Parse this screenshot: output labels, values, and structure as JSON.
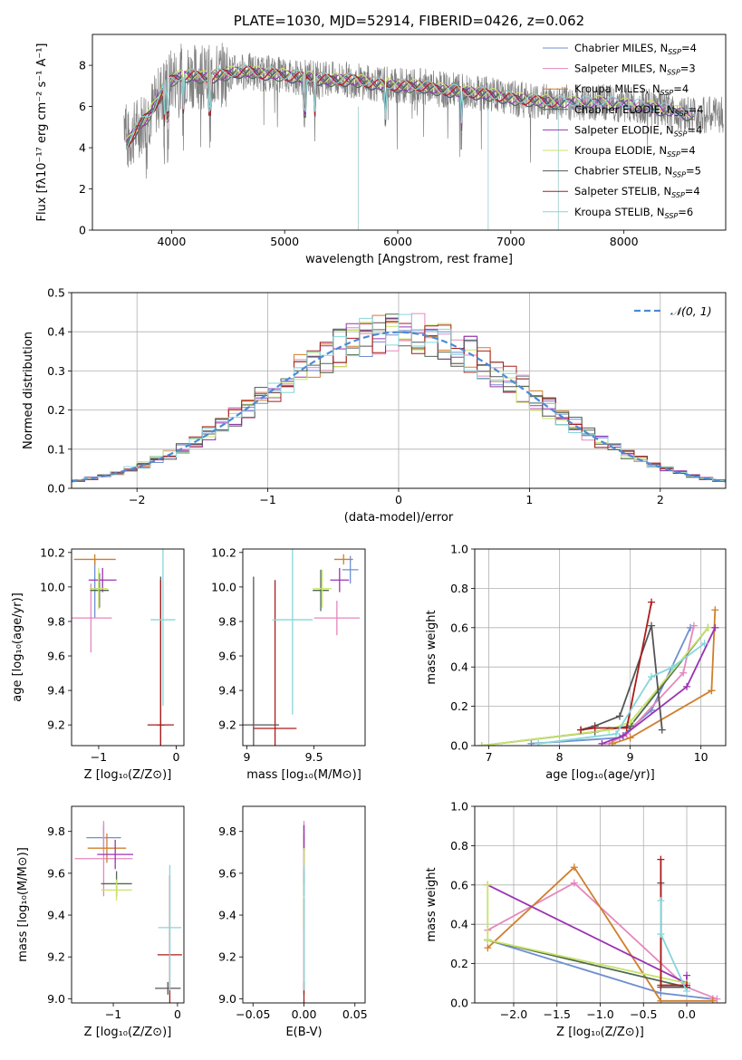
{
  "colors": {
    "Chabrier MILES": "#6f8fd0",
    "Salpeter MILES": "#e687bd",
    "Kroupa MILES": "#d07f2c",
    "Chabrier ELODIE": "#4d6a4f",
    "Salpeter ELODIE": "#9a34b3",
    "Kroupa ELODIE": "#c8e36a",
    "Chabrier STELIB": "#555555",
    "Salpeter STELIB": "#aa1c1c",
    "Kroupa STELIB": "#86d6db",
    "data": "#808080",
    "gauss": "#4c8ad6"
  },
  "chart_data": [
    {
      "id": "spectrum",
      "type": "line",
      "title": "PLATE=1030, MJD=52914, FIBERID=0426, z=0.062",
      "xlabel": "wavelength [Angstrom, rest frame]",
      "ylabel": "Flux [fλ10⁻¹⁷ erg cm⁻² s⁻¹ A⁻¹]",
      "xlim": [
        3300,
        8900
      ],
      "ylim": [
        0,
        9.5
      ],
      "xticks": [
        4000,
        5000,
        6000,
        7000,
        8000
      ],
      "yticks": [
        0,
        2,
        4,
        6,
        8
      ],
      "grid": false,
      "legend_position": "top-right",
      "legend": [
        {
          "label": "Chabrier MILES, N",
          "sub": "SSP",
          "suffix": "=4"
        },
        {
          "label": "Salpeter MILES, N",
          "sub": "SSP",
          "suffix": "=3"
        },
        {
          "label": "Kroupa MILES, N",
          "sub": "SSP",
          "suffix": "=4"
        },
        {
          "label": "Chabrier ELODIE, N",
          "sub": "SSP",
          "suffix": "=4"
        },
        {
          "label": "Salpeter ELODIE, N",
          "sub": "SSP",
          "suffix": "=4"
        },
        {
          "label": "Kroupa ELODIE, N",
          "sub": "SSP",
          "suffix": "=4"
        },
        {
          "label": "Chabrier STELIB, N",
          "sub": "SSP",
          "suffix": "=5"
        },
        {
          "label": "Salpeter STELIB, N",
          "sub": "SSP",
          "suffix": "=4"
        },
        {
          "label": "Kroupa STELIB, N",
          "sub": "SSP",
          "suffix": "=6"
        }
      ],
      "model_continuum": {
        "x": [
          3600,
          3650,
          3700,
          3750,
          3800,
          3850,
          3900,
          3950,
          4000,
          4100,
          4200,
          4300,
          4400,
          4500,
          4600,
          4700,
          4800,
          4900,
          5000,
          5200,
          5400,
          5600,
          5800,
          6000,
          6200,
          6400,
          6600,
          6800,
          7000,
          7200,
          7400,
          7600,
          7800,
          8000,
          8200,
          8400,
          8600
        ],
        "y": [
          4.1,
          4.6,
          5.0,
          5.3,
          5.6,
          6.0,
          6.6,
          7.0,
          7.3,
          7.5,
          7.5,
          7.4,
          7.5,
          7.6,
          7.7,
          7.7,
          7.6,
          7.6,
          7.5,
          7.4,
          7.3,
          7.3,
          7.1,
          7.0,
          7.0,
          6.8,
          6.7,
          6.6,
          6.4,
          6.3,
          6.2,
          6.2,
          6.2,
          6.1,
          6.0,
          5.8,
          5.6
        ]
      },
      "absorption_lines": [
        3934,
        3969,
        4102,
        4340,
        5175,
        5269,
        5890,
        6563
      ],
      "data_dropouts": [
        5650,
        6800,
        7420
      ]
    },
    {
      "id": "residuals",
      "type": "histogram",
      "xlabel": "(data-model)/error",
      "ylabel": "Normed distribution",
      "xlim": [
        -2.5,
        2.5
      ],
      "ylim": [
        0,
        0.5
      ],
      "xticks": [
        -2,
        -1,
        0,
        1,
        2
      ],
      "yticks": [
        0.0,
        0.1,
        0.2,
        0.3,
        0.4,
        0.5
      ],
      "grid": true,
      "legend_position": "top-right",
      "legend": [
        {
          "label": "𝒩(0, 1)"
        }
      ],
      "bin_width": 0.1,
      "bin_start": -2.5
    },
    {
      "id": "age-Z",
      "type": "errorbar",
      "xlabel": "Z [log₁₀(Z/Z⊙)]",
      "ylabel": "age  [log₁₀(age/yr)]",
      "xlim": [
        -1.35,
        0.1
      ],
      "ylim": [
        9.08,
        10.22
      ],
      "xticks": [
        -1,
        0
      ],
      "yticks": [
        9.2,
        9.4,
        9.6,
        9.8,
        10.0,
        10.2
      ],
      "points": [
        {
          "model": "Chabrier MILES",
          "x": -1.05,
          "xerr": 0.05,
          "y": 9.99,
          "yerr": 0.17
        },
        {
          "model": "Salpeter MILES",
          "x": -1.1,
          "xerr": 0.27,
          "y": 9.82,
          "yerr": 0.2
        },
        {
          "model": "Kroupa MILES",
          "x": -1.05,
          "xerr": 0.27,
          "y": 10.16,
          "yerr": 0.03
        },
        {
          "model": "Chabrier ELODIE",
          "x": -0.99,
          "xerr": 0.12,
          "y": 9.98,
          "yerr": 0.1
        },
        {
          "model": "Salpeter ELODIE",
          "x": -0.95,
          "xerr": 0.18,
          "y": 10.04,
          "yerr": 0.07
        },
        {
          "model": "Kroupa ELODIE",
          "x": -1.0,
          "xerr": 0.12,
          "y": 9.99,
          "yerr": 0.12
        },
        {
          "model": "Chabrier STELIB",
          "x": -0.2,
          "xerr": 0.05,
          "y": 9.2,
          "yerr": 0.86
        },
        {
          "model": "Salpeter STELIB",
          "x": -0.2,
          "xerr": 0.17,
          "y": 9.2,
          "yerr": 0.84
        },
        {
          "model": "Kroupa STELIB",
          "x": -0.17,
          "xerr": 0.16,
          "y": 9.81,
          "yerr": 0.5
        }
      ]
    },
    {
      "id": "age-mass",
      "type": "errorbar",
      "xlabel": "mass [log₁₀(M/M⊙)]",
      "ylabel": "",
      "xlim": [
        8.97,
        9.88
      ],
      "ylim": [
        9.08,
        10.22
      ],
      "xticks": [
        9.0,
        9.5
      ],
      "yticks": [
        9.2,
        9.4,
        9.6,
        9.8,
        10.0,
        10.2
      ],
      "points": [
        {
          "model": "Chabrier MILES",
          "x": 9.77,
          "xerr": 0.06,
          "y": 10.1,
          "yerr": 0.08
        },
        {
          "model": "Salpeter MILES",
          "x": 9.67,
          "xerr": 0.17,
          "y": 9.82,
          "yerr": 0.1
        },
        {
          "model": "Kroupa MILES",
          "x": 9.72,
          "xerr": 0.07,
          "y": 10.16,
          "yerr": 0.03
        },
        {
          "model": "Chabrier ELODIE",
          "x": 9.55,
          "xerr": 0.06,
          "y": 9.98,
          "yerr": 0.12
        },
        {
          "model": "Salpeter ELODIE",
          "x": 9.69,
          "xerr": 0.07,
          "y": 10.04,
          "yerr": 0.07
        },
        {
          "model": "Kroupa ELODIE",
          "x": 9.56,
          "xerr": 0.07,
          "y": 9.99,
          "yerr": 0.11
        },
        {
          "model": "Chabrier STELIB",
          "x": 9.05,
          "xerr": 0.19,
          "y": 9.2,
          "yerr": 0.86
        },
        {
          "model": "Salpeter STELIB",
          "x": 9.21,
          "xerr": 0.16,
          "y": 9.18,
          "yerr": 0.86
        },
        {
          "model": "Kroupa STELIB",
          "x": 9.34,
          "xerr": 0.15,
          "y": 9.81,
          "yerr": 0.55
        }
      ]
    },
    {
      "id": "weight-age",
      "type": "line",
      "xlabel": "age  [log₁₀(age/yr)]",
      "ylabel": "mass weight",
      "xlim": [
        6.8,
        10.35
      ],
      "ylim": [
        0,
        1.0
      ],
      "xticks": [
        7,
        8,
        9,
        10
      ],
      "yticks": [
        0.0,
        0.2,
        0.4,
        0.6,
        0.8,
        1.0
      ],
      "grid": true,
      "series": [
        {
          "model": "Chabrier MILES",
          "x": [
            7.6,
            8.85,
            9.3,
            9.85
          ],
          "y": [
            0.01,
            0.04,
            0.18,
            0.6
          ]
        },
        {
          "model": "Salpeter MILES",
          "x": [
            8.7,
            8.95,
            9.75,
            9.9
          ],
          "y": [
            0.01,
            0.06,
            0.37,
            0.61
          ]
        },
        {
          "model": "Kroupa MILES",
          "x": [
            8.75,
            9.0,
            10.15,
            10.2,
            10.15
          ],
          "y": [
            0.01,
            0.04,
            0.28,
            0.69,
            0.28
          ]
        },
        {
          "model": "Chabrier ELODIE",
          "x": [
            6.9,
            8.5,
            9.0,
            10.1
          ],
          "y": [
            0.0,
            0.07,
            0.1,
            0.6
          ]
        },
        {
          "model": "Salpeter ELODIE",
          "x": [
            8.6,
            8.9,
            9.8,
            10.2
          ],
          "y": [
            0.01,
            0.05,
            0.3,
            0.6
          ]
        },
        {
          "model": "Kroupa ELODIE",
          "x": [
            6.9,
            8.7,
            9.0,
            10.1
          ],
          "y": [
            0.0,
            0.08,
            0.12,
            0.6
          ]
        },
        {
          "model": "Chabrier STELIB",
          "x": [
            8.3,
            8.5,
            8.85,
            9.3,
            9.45
          ],
          "y": [
            0.08,
            0.1,
            0.15,
            0.61,
            0.08
          ]
        },
        {
          "model": "Salpeter STELIB",
          "x": [
            8.3,
            8.5,
            8.95,
            9.3
          ],
          "y": [
            0.08,
            0.09,
            0.09,
            0.73
          ]
        },
        {
          "model": "Kroupa STELIB",
          "x": [
            7.7,
            8.8,
            9.3,
            9.6,
            10.05
          ],
          "y": [
            0.01,
            0.06,
            0.35,
            0.4,
            0.52
          ]
        }
      ]
    },
    {
      "id": "mass-Z",
      "type": "errorbar",
      "xlabel": "Z [log₁₀(Z/Z⊙)]",
      "ylabel": "mass [log₁₀(M/M⊙)]",
      "xlim": [
        -1.65,
        0.1
      ],
      "ylim": [
        8.98,
        9.92
      ],
      "xticks": [
        -1,
        0
      ],
      "yticks": [
        9.0,
        9.2,
        9.4,
        9.6,
        9.8
      ],
      "points": [
        {
          "model": "Chabrier MILES",
          "x": -1.15,
          "xerr": 0.27,
          "y": 9.77,
          "yerr": 0.06
        },
        {
          "model": "Salpeter MILES",
          "x": -1.15,
          "xerr": 0.45,
          "y": 9.67,
          "yerr": 0.18
        },
        {
          "model": "Kroupa MILES",
          "x": -1.1,
          "xerr": 0.3,
          "y": 9.72,
          "yerr": 0.07
        },
        {
          "model": "Chabrier ELODIE",
          "x": -0.95,
          "xerr": 0.24,
          "y": 9.55,
          "yerr": 0.06
        },
        {
          "model": "Salpeter ELODIE",
          "x": -0.97,
          "xerr": 0.28,
          "y": 9.69,
          "yerr": 0.07
        },
        {
          "model": "Kroupa ELODIE",
          "x": -0.95,
          "xerr": 0.24,
          "y": 9.52,
          "yerr": 0.05
        },
        {
          "model": "Chabrier STELIB",
          "x": -0.15,
          "xerr": 0.2,
          "y": 9.05,
          "yerr": 0.03
        },
        {
          "model": "Salpeter STELIB",
          "x": -0.12,
          "xerr": 0.19,
          "y": 9.21,
          "yerr": 0.38
        },
        {
          "model": "Kroupa STELIB",
          "x": -0.12,
          "xerr": 0.18,
          "y": 9.34,
          "yerr": 0.3
        }
      ]
    },
    {
      "id": "mass-EBV",
      "type": "errorbar",
      "xlabel": "E(B-V)",
      "ylabel": "",
      "xlim": [
        -0.06,
        0.06
      ],
      "ylim": [
        8.98,
        9.92
      ],
      "xticks": [
        -0.05,
        0.0,
        0.05
      ],
      "xticklabels": [
        "−0.05",
        "0.00",
        "0.05"
      ],
      "yticks": [
        9.0,
        9.2,
        9.4,
        9.6,
        9.8
      ],
      "points": [
        {
          "model": "Chabrier MILES",
          "x": 0.0,
          "xerr": 0.0,
          "y": 9.77,
          "yerr": 0.06
        },
        {
          "model": "Salpeter MILES",
          "x": 0.0,
          "xerr": 0.0,
          "y": 9.67,
          "yerr": 0.18
        },
        {
          "model": "Kroupa MILES",
          "x": 0.0,
          "xerr": 0.0,
          "y": 9.72,
          "yerr": 0.07
        },
        {
          "model": "Chabrier ELODIE",
          "x": 0.0,
          "xerr": 0.0,
          "y": 9.55,
          "yerr": 0.06
        },
        {
          "model": "Salpeter ELODIE",
          "x": 0.0,
          "xerr": 0.0,
          "y": 9.69,
          "yerr": 0.14
        },
        {
          "model": "Kroupa ELODIE",
          "x": 0.0,
          "xerr": 0.0,
          "y": 9.52,
          "yerr": 0.2
        },
        {
          "model": "Chabrier STELIB",
          "x": 0.0,
          "xerr": 0.0,
          "y": 9.05,
          "yerr": 0.03
        },
        {
          "model": "Salpeter STELIB",
          "x": 0.0,
          "xerr": 0.0,
          "y": 9.21,
          "yerr": 0.27
        },
        {
          "model": "Kroupa STELIB",
          "x": 0.0,
          "xerr": 0.0,
          "y": 9.34,
          "yerr": 0.3
        }
      ]
    },
    {
      "id": "weight-Z",
      "type": "line",
      "xlabel": "Z [log₁₀(Z/Z⊙)]",
      "ylabel": "mass weight",
      "xlim": [
        -2.45,
        0.45
      ],
      "ylim": [
        0,
        1.0
      ],
      "xticks": [
        -2.0,
        -1.5,
        -1.0,
        -0.5,
        0.0
      ],
      "xticklabels": [
        "−2.0",
        "−1.5",
        "−1.0",
        "−0.5",
        "0.0"
      ],
      "yticks": [
        0.0,
        0.2,
        0.4,
        0.6,
        0.8,
        1.0
      ],
      "grid": true,
      "series": [
        {
          "model": "Chabrier MILES",
          "x": [
            -2.3,
            -0.3,
            0.3
          ],
          "y": [
            0.32,
            0.05,
            0.02
          ]
        },
        {
          "model": "Salpeter MILES",
          "x": [
            -2.3,
            -1.3,
            0.0,
            0.35,
            0.3
          ],
          "y": [
            0.37,
            0.61,
            0.08,
            0.02,
            0.02
          ]
        },
        {
          "model": "Kroupa MILES",
          "x": [
            -2.3,
            -1.3,
            -0.3,
            0.3
          ],
          "y": [
            0.28,
            0.69,
            0.01,
            0.01
          ]
        },
        {
          "model": "Chabrier ELODIE",
          "x": [
            -2.3,
            0.0
          ],
          "y": [
            0.32,
            0.08
          ]
        },
        {
          "model": "Salpeter ELODIE",
          "x": [
            -2.3,
            0.0,
            0.0
          ],
          "y": [
            0.6,
            0.1,
            0.14
          ]
        },
        {
          "model": "Kroupa ELODIE",
          "x": [
            -2.3,
            -2.3,
            0.0
          ],
          "y": [
            0.6,
            0.32,
            0.1
          ]
        },
        {
          "model": "Chabrier STELIB",
          "x": [
            -0.3,
            -0.3,
            0.0
          ],
          "y": [
            0.61,
            0.08,
            0.08
          ]
        },
        {
          "model": "Salpeter STELIB",
          "x": [
            -0.3,
            -0.3,
            0.0
          ],
          "y": [
            0.73,
            0.09,
            0.09
          ]
        },
        {
          "model": "Kroupa STELIB",
          "x": [
            -0.3,
            -0.3,
            0.0
          ],
          "y": [
            0.52,
            0.35,
            0.06
          ]
        }
      ]
    }
  ]
}
